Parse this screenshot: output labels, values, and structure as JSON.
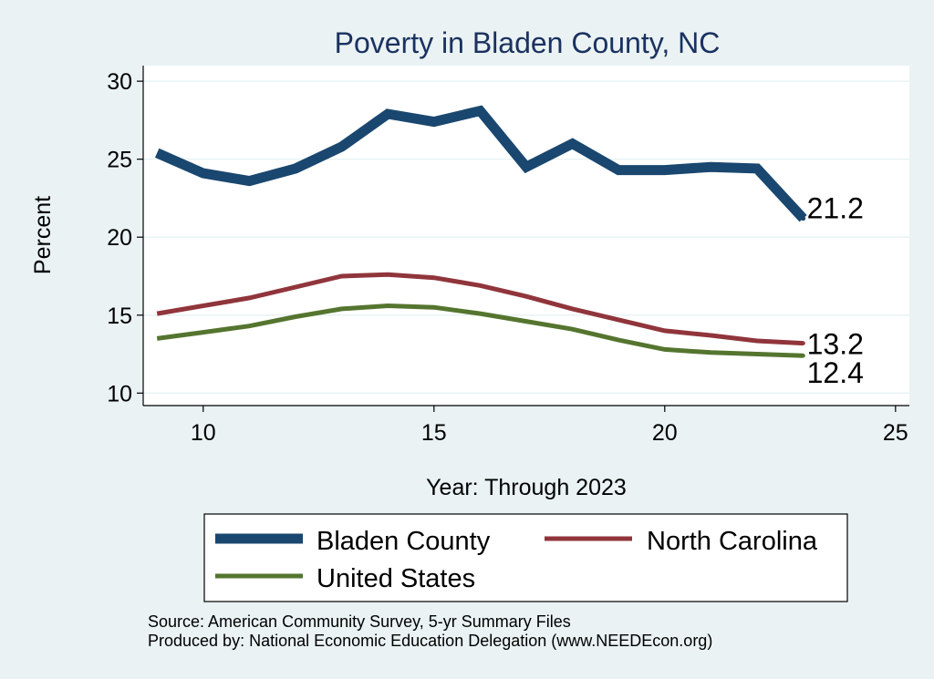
{
  "chart_data": {
    "type": "line",
    "title": "Poverty in Bladen County, NC",
    "xlabel": "Year: Through 2023",
    "ylabel": "Percent",
    "xlim": [
      8.7,
      25.3
    ],
    "ylim": [
      9.2,
      31
    ],
    "xticks": [
      "10",
      "15",
      "20",
      "25"
    ],
    "yticks": [
      "10",
      "15",
      "20",
      "25",
      "30"
    ],
    "grid": true,
    "x": [
      9,
      10,
      11,
      12,
      13,
      14,
      15,
      16,
      17,
      18,
      19,
      20,
      21,
      22,
      23
    ],
    "series": [
      {
        "name": "Bladen County",
        "color": "#1a476f",
        "values": [
          25.4,
          24.1,
          23.6,
          24.4,
          25.8,
          27.9,
          27.4,
          28.1,
          24.5,
          26.0,
          24.3,
          24.3,
          24.5,
          24.4,
          21.2
        ],
        "end_label": "21.2"
      },
      {
        "name": "North Carolina",
        "color": "#90353b",
        "values": [
          15.1,
          15.6,
          16.1,
          16.8,
          17.5,
          17.6,
          17.4,
          16.9,
          16.2,
          15.4,
          14.7,
          14.0,
          13.7,
          13.35,
          13.2
        ],
        "end_label": "13.2"
      },
      {
        "name": "United States",
        "color": "#55752f",
        "values": [
          13.5,
          13.9,
          14.3,
          14.9,
          15.4,
          15.6,
          15.5,
          15.1,
          14.6,
          14.1,
          13.4,
          12.8,
          12.6,
          12.5,
          12.4
        ],
        "end_label": "12.4"
      }
    ],
    "legend": {
      "placement": "bottom",
      "entries": [
        "Bladen County",
        "North Carolina",
        "United States"
      ]
    },
    "notes": [
      "Source: American Community Survey, 5-yr Summary Files",
      "Produced by: National Economic Education Delegation (www.NEEDEcon.org)"
    ]
  }
}
